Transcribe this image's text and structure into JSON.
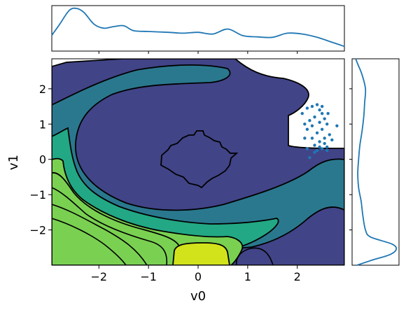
{
  "chart_data": {
    "type": "contour-with-marginals",
    "xlabel": "v0",
    "ylabel": "v1",
    "xlim": [
      -2.95,
      2.95
    ],
    "ylim": [
      -3.0,
      2.85
    ],
    "xticks": [
      -2,
      -1,
      0,
      1,
      2
    ],
    "yticks": [
      -2,
      -1,
      0,
      1,
      2
    ],
    "xtick_labels": [
      "−2",
      "−1",
      "0",
      "1",
      "2"
    ],
    "ytick_labels": [
      "−2",
      "−1",
      "0",
      "1",
      "2"
    ],
    "grid": false,
    "colormap": "viridis",
    "contour_fill_colors": [
      "#414487",
      "#2a788e",
      "#22a884",
      "#7ad151",
      "#d2e21b"
    ],
    "line_color": "#1f77b4",
    "scatter_points": [
      [
        2.2,
        1.45
      ],
      [
        2.3,
        1.5
      ],
      [
        2.4,
        1.55
      ],
      [
        2.45,
        1.4
      ],
      [
        2.5,
        1.3
      ],
      [
        2.35,
        1.2
      ],
      [
        2.25,
        1.1
      ],
      [
        2.15,
        1.0
      ],
      [
        2.2,
        0.85
      ],
      [
        2.3,
        0.95
      ],
      [
        2.45,
        1.05
      ],
      [
        2.55,
        1.15
      ],
      [
        2.6,
        1.0
      ],
      [
        2.5,
        0.85
      ],
      [
        2.4,
        0.75
      ],
      [
        2.3,
        0.6
      ],
      [
        2.45,
        0.5
      ],
      [
        2.55,
        0.45
      ],
      [
        2.6,
        0.35
      ],
      [
        2.5,
        0.3
      ],
      [
        2.4,
        0.25
      ],
      [
        2.35,
        0.2
      ],
      [
        2.55,
        0.6
      ],
      [
        2.65,
        0.7
      ],
      [
        2.7,
        0.55
      ],
      [
        2.6,
        0.25
      ],
      [
        2.45,
        0.35
      ],
      [
        2.2,
        0.3
      ],
      [
        2.25,
        0.05
      ],
      [
        2.8,
        0.95
      ],
      [
        2.1,
        1.3
      ],
      [
        2.15,
        0.6
      ],
      [
        2.5,
        1.5
      ],
      [
        2.35,
        0.4
      ],
      [
        2.62,
        1.3
      ]
    ],
    "top_marginal": {
      "x": [
        -2.95,
        -2.8,
        -2.6,
        -2.45,
        -2.3,
        -2.1,
        -1.9,
        -1.7,
        -1.5,
        -1.3,
        -1.0,
        -0.6,
        -0.3,
        0.0,
        0.3,
        0.6,
        0.9,
        1.2,
        1.5,
        1.8,
        2.1,
        2.4,
        2.7,
        2.95
      ],
      "density": [
        0.35,
        0.6,
        0.95,
        1.0,
        0.9,
        0.62,
        0.52,
        0.56,
        0.58,
        0.46,
        0.44,
        0.42,
        0.4,
        0.42,
        0.38,
        0.5,
        0.34,
        0.31,
        0.3,
        0.4,
        0.38,
        0.3,
        0.18,
        0.08
      ]
    },
    "right_marginal": {
      "y": [
        -3.0,
        -2.85,
        -2.7,
        -2.55,
        -2.4,
        -2.2,
        -2.0,
        -1.6,
        -1.2,
        -0.8,
        -0.4,
        0.0,
        0.4,
        0.8,
        1.2,
        1.6,
        2.0,
        2.4,
        2.7,
        2.85
      ],
      "density": [
        0.08,
        0.45,
        0.85,
        1.0,
        0.9,
        0.4,
        0.28,
        0.22,
        0.18,
        0.12,
        0.1,
        0.12,
        0.15,
        0.2,
        0.24,
        0.26,
        0.28,
        0.2,
        0.1,
        0.05
      ]
    }
  }
}
